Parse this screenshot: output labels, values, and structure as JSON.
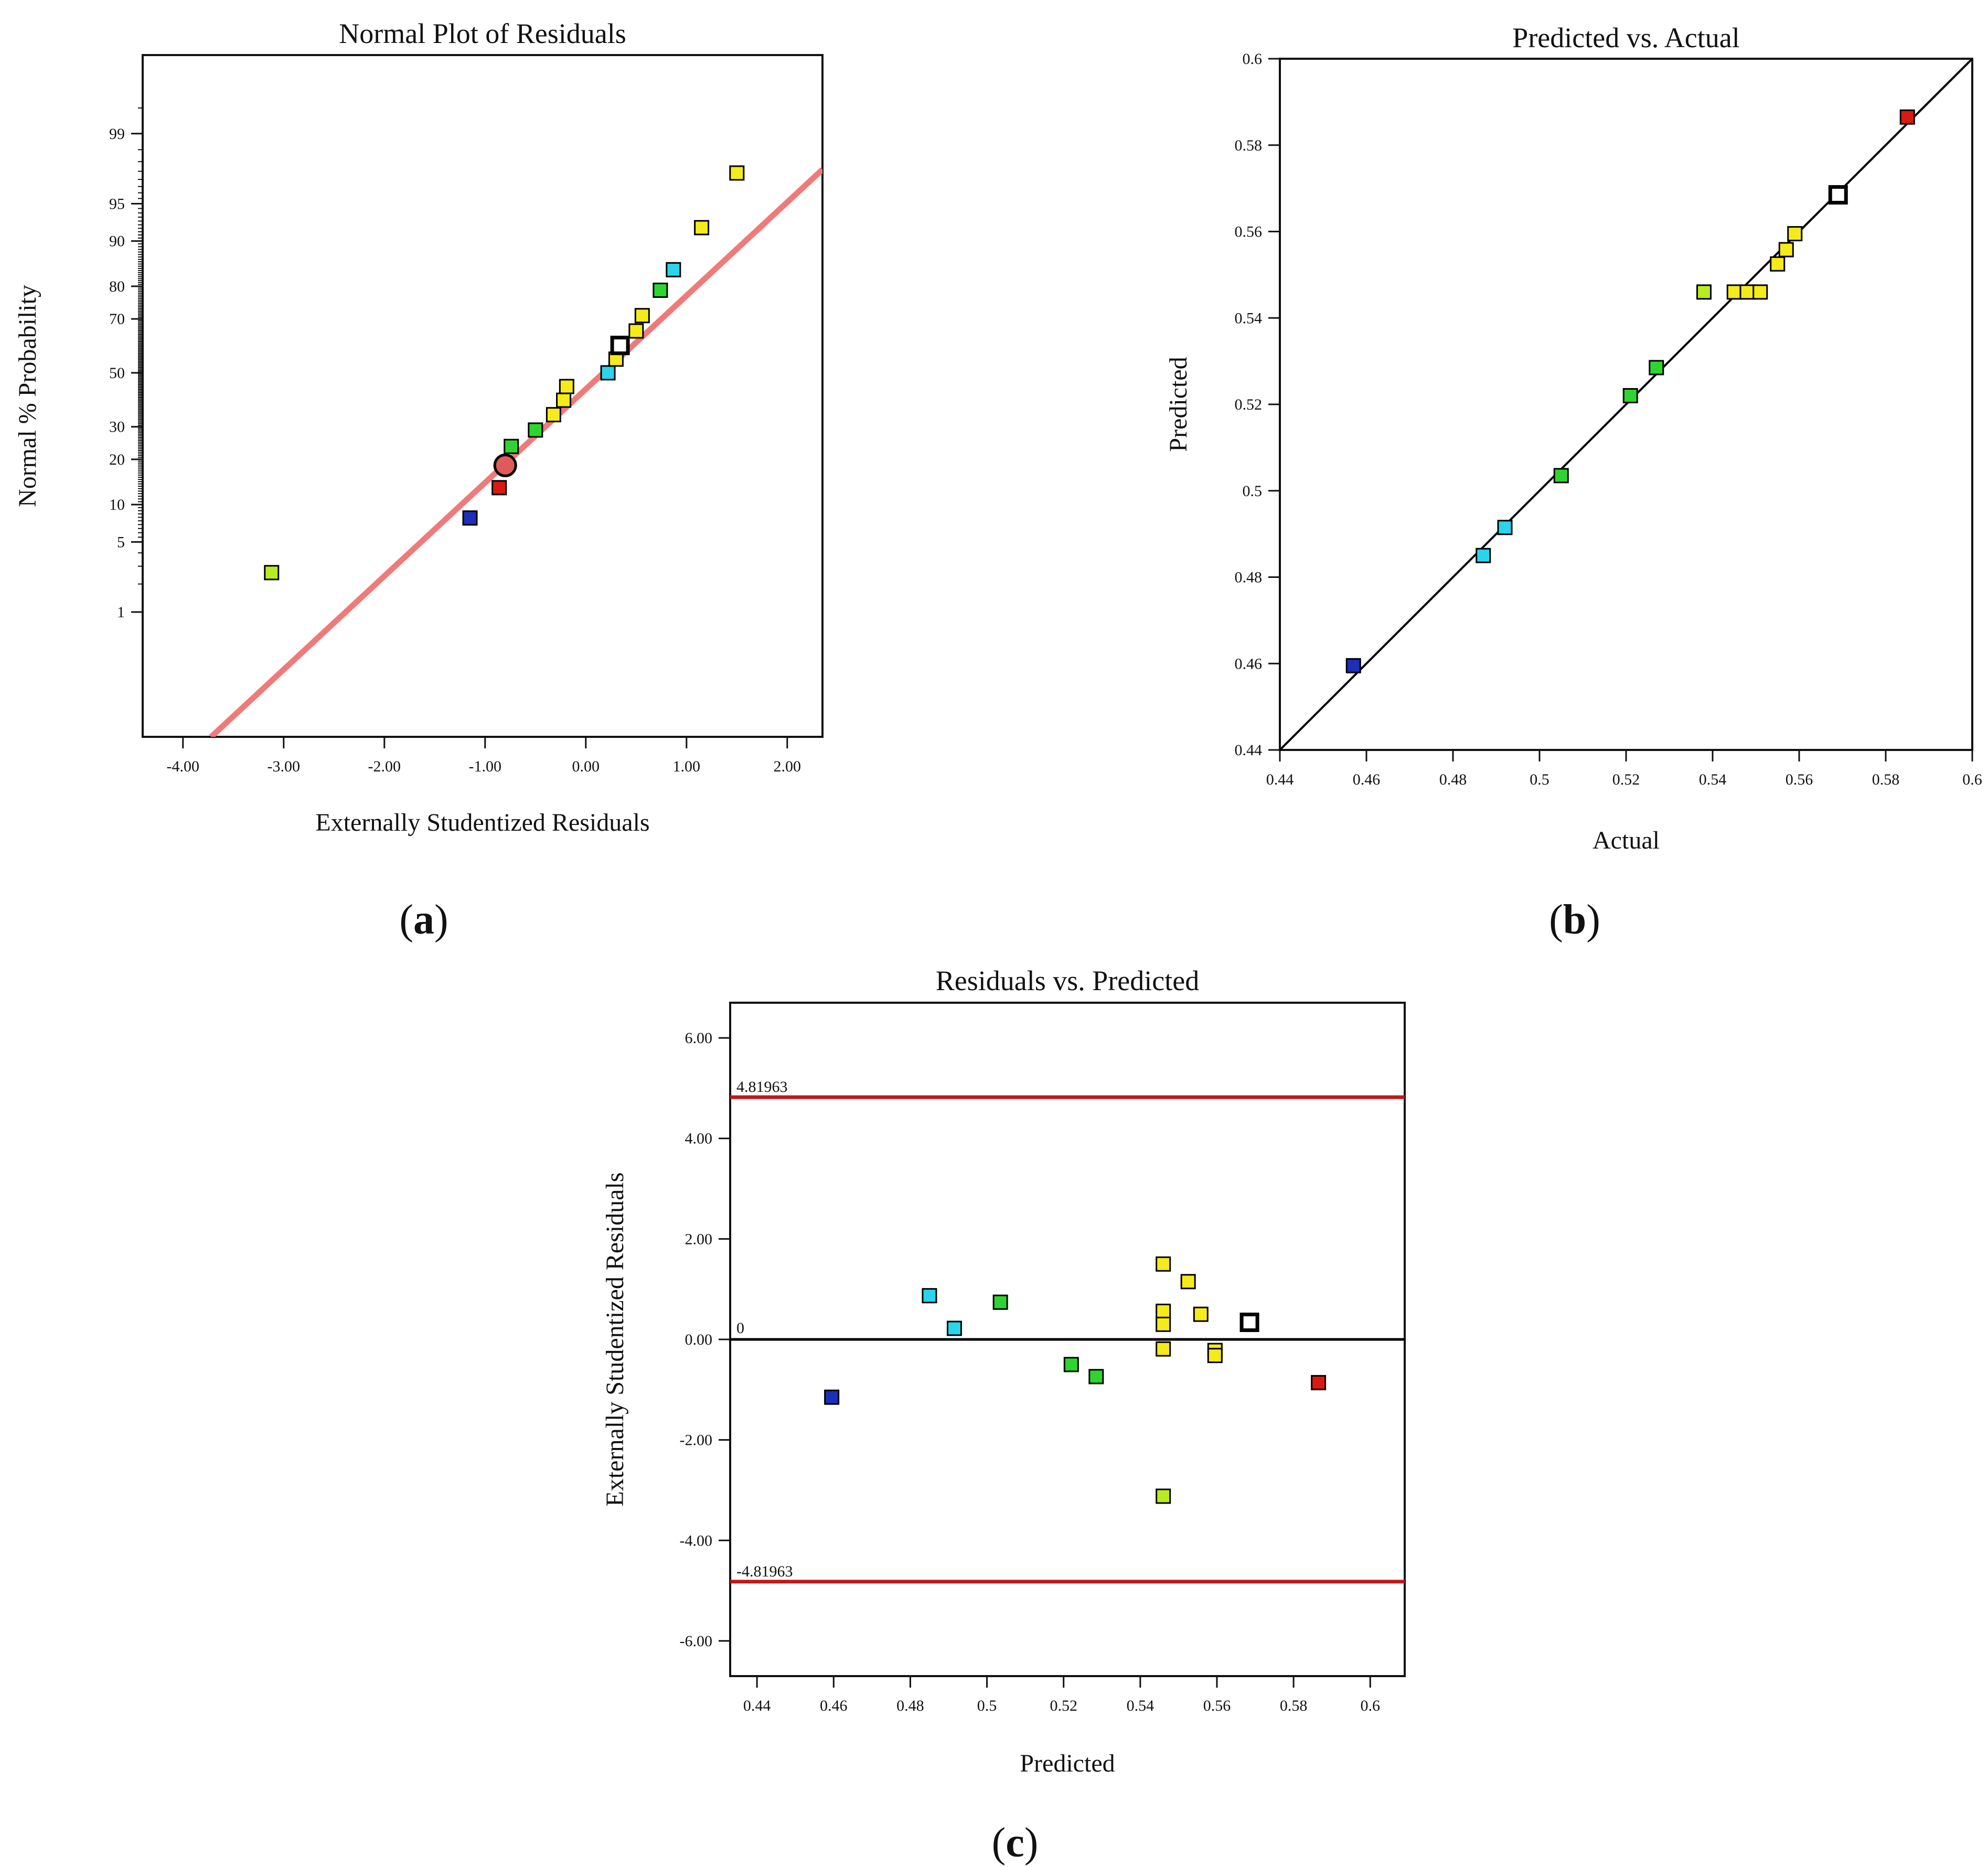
{
  "colors": {
    "frame": "#111111",
    "fit_line_a": "#f07a7a",
    "fit_line_b": "#000000",
    "limit_line": "#c01818",
    "zero_line": "#000000",
    "blue": "#1b2fb8",
    "cyan": "#2ad4ea",
    "green": "#2fd52f",
    "lime": "#b9ec1e",
    "yellow": "#f5ea1a",
    "red": "#d81a12",
    "white": "#ffffff",
    "highlight": "#e05a5a"
  },
  "captions": {
    "a": [
      "(",
      "a",
      ")"
    ],
    "b": [
      "(",
      "b",
      ")"
    ],
    "c": [
      "(",
      "c",
      ")"
    ]
  },
  "chart_data": [
    {
      "id": "a",
      "type": "scatter",
      "title": "Normal Plot of Residuals",
      "xlabel": "Externally Studentized Residuals",
      "ylabel": "Normal % Probability",
      "xlim": [
        -4.4,
        2.35
      ],
      "x_ticks": [
        -4,
        -3,
        -2,
        -1,
        0,
        1,
        2
      ],
      "x_tick_labels": [
        "-4.00",
        "-3.00",
        "-2.00",
        "-1.00",
        "0.00",
        "1.00",
        "2.00"
      ],
      "y_scale": "normal probability",
      "ylim_percent": [
        0.02,
        99.9
      ],
      "y_ticks": [
        1,
        5,
        10,
        20,
        30,
        50,
        70,
        80,
        90,
        95,
        99
      ],
      "y_tick_labels": [
        "1",
        "5",
        "10",
        "20",
        "30",
        "50",
        "70",
        "80",
        "90",
        "95",
        "99"
      ],
      "grid": false,
      "fit_line": {
        "from": [
          -3.72,
          0.02
        ],
        "to": [
          2.35,
          97.6
        ],
        "color": "fit_line_a"
      },
      "points": [
        {
          "x": -3.12,
          "y": 2.6,
          "color": "lime"
        },
        {
          "x": -1.15,
          "y": 7.9,
          "color": "blue"
        },
        {
          "x": -0.86,
          "y": 13.2,
          "color": "red"
        },
        {
          "x": -0.8,
          "y": 18.4,
          "color": "highlight",
          "shape": "circle"
        },
        {
          "x": -0.74,
          "y": 23.7,
          "color": "green"
        },
        {
          "x": -0.5,
          "y": 28.9,
          "color": "green"
        },
        {
          "x": -0.32,
          "y": 34.2,
          "color": "yellow"
        },
        {
          "x": -0.22,
          "y": 39.5,
          "color": "yellow"
        },
        {
          "x": -0.19,
          "y": 44.7,
          "color": "yellow"
        },
        {
          "x": 0.22,
          "y": 50.0,
          "color": "cyan"
        },
        {
          "x": 0.3,
          "y": 55.3,
          "color": "yellow"
        },
        {
          "x": 0.34,
          "y": 60.5,
          "color": "white"
        },
        {
          "x": 0.5,
          "y": 65.8,
          "color": "yellow"
        },
        {
          "x": 0.56,
          "y": 71.1,
          "color": "yellow"
        },
        {
          "x": 0.74,
          "y": 78.9,
          "color": "green"
        },
        {
          "x": 0.87,
          "y": 84.2,
          "color": "cyan"
        },
        {
          "x": 1.15,
          "y": 92.1,
          "color": "yellow"
        },
        {
          "x": 1.5,
          "y": 97.4,
          "color": "yellow"
        }
      ]
    },
    {
      "id": "b",
      "type": "scatter",
      "title": "Predicted vs. Actual",
      "xlabel": "Actual",
      "ylabel": "Predicted",
      "xlim": [
        0.44,
        0.6
      ],
      "ylim": [
        0.44,
        0.6
      ],
      "x_ticks": [
        0.44,
        0.46,
        0.48,
        0.5,
        0.52,
        0.54,
        0.56,
        0.58,
        0.6
      ],
      "x_tick_labels": [
        "0.44",
        "0.46",
        "0.48",
        "0.5",
        "0.52",
        "0.54",
        "0.56",
        "0.58",
        "0.6"
      ],
      "y_ticks": [
        0.44,
        0.46,
        0.48,
        0.5,
        0.52,
        0.54,
        0.56,
        0.58,
        0.6
      ],
      "y_tick_labels": [
        "0.44",
        "0.46",
        "0.48",
        "0.5",
        "0.52",
        "0.54",
        "0.56",
        "0.58",
        "0.6"
      ],
      "grid": false,
      "fit_line": {
        "from": [
          0.44,
          0.44
        ],
        "to": [
          0.6,
          0.6
        ],
        "color": "fit_line_b"
      },
      "points": [
        {
          "x": 0.457,
          "y": 0.4595,
          "color": "blue"
        },
        {
          "x": 0.487,
          "y": 0.485,
          "color": "cyan"
        },
        {
          "x": 0.492,
          "y": 0.4915,
          "color": "cyan"
        },
        {
          "x": 0.505,
          "y": 0.5035,
          "color": "green"
        },
        {
          "x": 0.521,
          "y": 0.522,
          "color": "green"
        },
        {
          "x": 0.527,
          "y": 0.5285,
          "color": "green"
        },
        {
          "x": 0.538,
          "y": 0.546,
          "color": "lime"
        },
        {
          "x": 0.545,
          "y": 0.546,
          "color": "yellow"
        },
        {
          "x": 0.548,
          "y": 0.546,
          "color": "yellow"
        },
        {
          "x": 0.551,
          "y": 0.546,
          "color": "yellow"
        },
        {
          "x": 0.555,
          "y": 0.5525,
          "color": "yellow"
        },
        {
          "x": 0.557,
          "y": 0.5558,
          "color": "yellow"
        },
        {
          "x": 0.559,
          "y": 0.5595,
          "color": "yellow"
        },
        {
          "x": 0.569,
          "y": 0.5685,
          "color": "white"
        },
        {
          "x": 0.585,
          "y": 0.5865,
          "color": "red"
        }
      ]
    },
    {
      "id": "c",
      "type": "scatter",
      "title": "Residuals vs. Predicted",
      "xlabel": "Predicted",
      "ylabel": "Externally Studentized Residuals",
      "xlim": [
        0.433,
        0.609
      ],
      "ylim": [
        -6.7,
        6.7
      ],
      "x_ticks": [
        0.44,
        0.46,
        0.48,
        0.5,
        0.52,
        0.54,
        0.56,
        0.58,
        0.6
      ],
      "x_tick_labels": [
        "0.44",
        "0.46",
        "0.48",
        "0.5",
        "0.52",
        "0.54",
        "0.56",
        "0.58",
        "0.6"
      ],
      "y_ticks": [
        -6,
        -4,
        -2,
        0,
        2,
        4,
        6
      ],
      "y_tick_labels": [
        "-6.00",
        "-4.00",
        "-2.00",
        "0.00",
        "2.00",
        "4.00",
        "6.00"
      ],
      "grid": false,
      "limits": [
        {
          "value": 4.81963,
          "label": "4.81963"
        },
        {
          "value": -4.81963,
          "label": "-4.81963"
        }
      ],
      "zero_line": {
        "value": 0,
        "label": "0"
      },
      "points": [
        {
          "x": 0.4595,
          "y": -1.15,
          "color": "blue"
        },
        {
          "x": 0.485,
          "y": 0.87,
          "color": "cyan"
        },
        {
          "x": 0.4915,
          "y": 0.22,
          "color": "cyan"
        },
        {
          "x": 0.5035,
          "y": 0.74,
          "color": "green"
        },
        {
          "x": 0.522,
          "y": -0.5,
          "color": "green"
        },
        {
          "x": 0.5285,
          "y": -0.74,
          "color": "green"
        },
        {
          "x": 0.546,
          "y": 1.5,
          "color": "yellow"
        },
        {
          "x": 0.546,
          "y": 0.56,
          "color": "yellow"
        },
        {
          "x": 0.546,
          "y": 0.3,
          "color": "yellow"
        },
        {
          "x": 0.546,
          "y": -0.19,
          "color": "yellow"
        },
        {
          "x": 0.546,
          "y": -3.12,
          "color": "lime"
        },
        {
          "x": 0.5525,
          "y": 1.15,
          "color": "yellow"
        },
        {
          "x": 0.5558,
          "y": 0.5,
          "color": "yellow"
        },
        {
          "x": 0.5595,
          "y": -0.22,
          "color": "yellow"
        },
        {
          "x": 0.5595,
          "y": -0.32,
          "color": "yellow"
        },
        {
          "x": 0.5685,
          "y": 0.34,
          "color": "white"
        },
        {
          "x": 0.5865,
          "y": -0.86,
          "color": "red"
        }
      ]
    }
  ]
}
